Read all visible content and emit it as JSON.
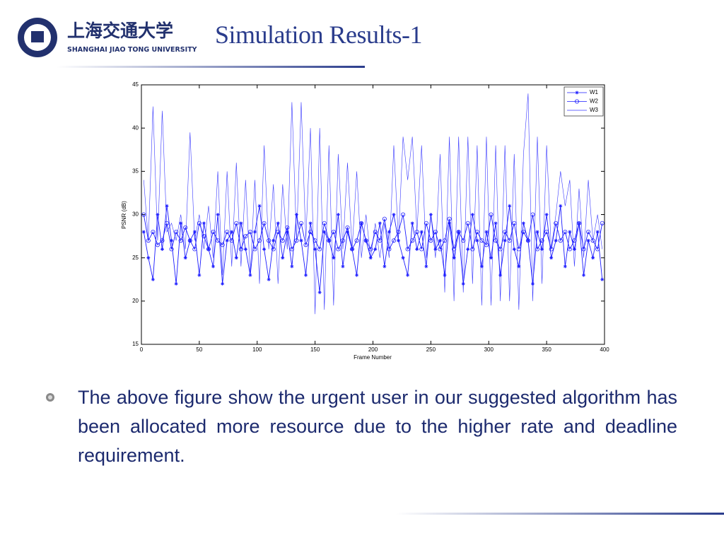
{
  "header": {
    "logo_cn": "上海交通大学",
    "logo_en": "SHANGHAI JIAO TONG UNIVERSITY",
    "title": "Simulation Results-1"
  },
  "chart_data": {
    "type": "line",
    "xlabel": "Frame Number",
    "ylabel": "PSNR (dB)",
    "xlim": [
      0,
      400
    ],
    "xticks": [
      0,
      50,
      100,
      150,
      200,
      250,
      300,
      350,
      400
    ],
    "ylim": [
      15,
      45
    ],
    "yticks": [
      15,
      20,
      25,
      30,
      35,
      40,
      45
    ],
    "legend": "upper right",
    "x": [
      2,
      6,
      10,
      14,
      18,
      22,
      26,
      30,
      34,
      38,
      42,
      46,
      50,
      54,
      58,
      62,
      66,
      70,
      74,
      78,
      82,
      86,
      90,
      94,
      98,
      102,
      106,
      110,
      114,
      118,
      122,
      126,
      130,
      134,
      138,
      142,
      146,
      150,
      154,
      158,
      162,
      166,
      170,
      174,
      178,
      182,
      186,
      190,
      194,
      198,
      202,
      206,
      210,
      214,
      218,
      222,
      226,
      230,
      234,
      238,
      242,
      246,
      250,
      254,
      258,
      262,
      266,
      270,
      274,
      278,
      282,
      286,
      290,
      294,
      298,
      302,
      306,
      310,
      314,
      318,
      322,
      326,
      330,
      334,
      338,
      342,
      346,
      350,
      354,
      358,
      362,
      366,
      370,
      374,
      378,
      382,
      386,
      390,
      394,
      398
    ],
    "series": [
      {
        "name": "W1",
        "color": "#1a1aff",
        "marker": "star",
        "values": [
          28,
          25,
          22.5,
          30,
          26,
          31,
          27,
          22,
          29,
          25,
          27,
          28,
          23,
          29,
          26,
          24,
          30,
          22,
          27,
          28,
          25,
          29,
          26,
          23,
          28,
          31,
          26,
          22.5,
          27,
          29,
          25,
          28,
          24,
          30,
          27,
          23,
          29,
          26,
          21,
          28,
          27,
          25,
          30,
          24,
          28,
          26,
          23,
          29,
          27,
          25,
          26,
          29,
          24,
          28,
          30,
          27,
          25,
          23,
          29,
          26,
          28,
          24,
          30,
          26,
          27,
          23,
          29,
          25,
          28,
          22,
          26,
          30,
          27,
          24,
          28,
          25,
          29,
          23,
          27,
          31,
          26,
          24,
          29,
          27,
          22,
          28,
          26,
          30,
          25,
          27,
          31,
          24,
          28,
          26,
          29,
          23,
          27,
          25,
          28,
          22.5
        ]
      },
      {
        "name": "W2",
        "color": "#1a1aff",
        "marker": "circle",
        "values": [
          30,
          27,
          28,
          26.5,
          27,
          29,
          26,
          28,
          27,
          28.5,
          27,
          26,
          29,
          27.5,
          26,
          28,
          27,
          26.5,
          28,
          27,
          29,
          26,
          27.5,
          28,
          26,
          27,
          29,
          27,
          26,
          28,
          27,
          28.5,
          26,
          27,
          29,
          26.5,
          28,
          27,
          26,
          29,
          27,
          28,
          26,
          27,
          28.5,
          26,
          27,
          29,
          27,
          26,
          28,
          27,
          29.5,
          26,
          27,
          28,
          30,
          26,
          27,
          28,
          26,
          29,
          27,
          28,
          26,
          27,
          29.5,
          26,
          28,
          27,
          29,
          26,
          28,
          27,
          26.5,
          30,
          27,
          26,
          28,
          27,
          29,
          26,
          28,
          27,
          30,
          26,
          27,
          28,
          26,
          29,
          27,
          28,
          26,
          27,
          29,
          26,
          28,
          27,
          26,
          29
        ]
      },
      {
        "name": "W3",
        "color": "#3a3aff",
        "marker": "none",
        "values": [
          34,
          27,
          42.5,
          27,
          42,
          28,
          29,
          27,
          30,
          26,
          39.5,
          27,
          30,
          26,
          31,
          25,
          35,
          23,
          35,
          24,
          36,
          24,
          34,
          23,
          34,
          22,
          38,
          26,
          33.5,
          22,
          33.5,
          26,
          43,
          27,
          43,
          27,
          40,
          18.5,
          40,
          19,
          38,
          19.5,
          37,
          26,
          36,
          26,
          35,
          25,
          30,
          25,
          29,
          25,
          29,
          25,
          38,
          27,
          39,
          34,
          39,
          28,
          38,
          25,
          30,
          25,
          37,
          21,
          39,
          20,
          39,
          21,
          39,
          22,
          38,
          19.5,
          39,
          19.5,
          38,
          20,
          38,
          20,
          37,
          19,
          37,
          44,
          20,
          39,
          22,
          38,
          26,
          30,
          35,
          31,
          34,
          24,
          33,
          25,
          34,
          27,
          30,
          26
        ]
      }
    ]
  },
  "body": {
    "bullets": [
      "The above figure show the urgent user in our suggested algorithm has been allocated more resource due to the higher rate and deadline requirement."
    ]
  }
}
